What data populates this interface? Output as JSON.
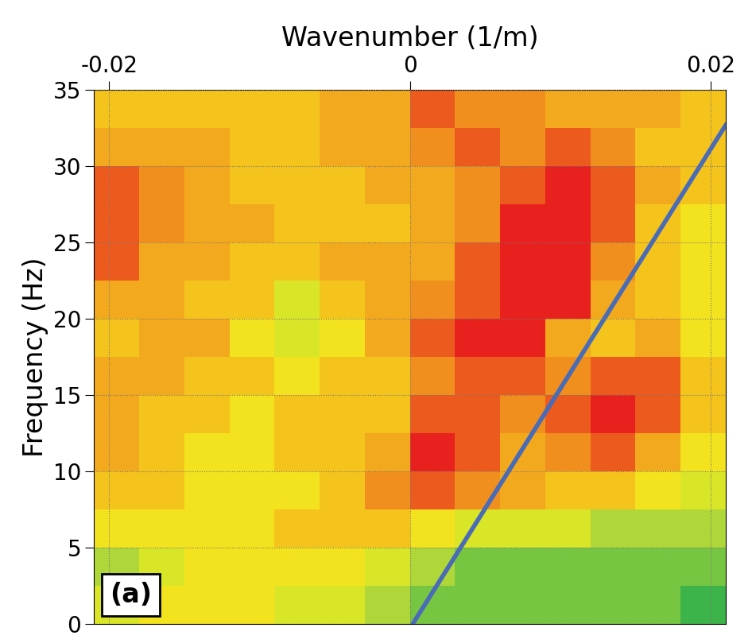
{
  "chart_data": {
    "type": "heatmap",
    "x_label": "Wavenumber (1/m)",
    "y_label": "Frequency (Hz)",
    "annotation": "(a)",
    "xlim": [
      -0.021,
      0.021
    ],
    "ylim": [
      0,
      35
    ],
    "xticks": [
      -0.02,
      0,
      0.02
    ],
    "yticks": [
      0,
      5,
      10,
      15,
      20,
      25,
      30,
      35
    ],
    "grid": true,
    "x": [
      -0.0195,
      -0.0165,
      -0.0135,
      -0.0105,
      -0.0075,
      -0.0045,
      -0.0015,
      0.0015,
      0.0045,
      0.0075,
      0.0105,
      0.0135,
      0.0165,
      0.0195
    ],
    "y": [
      1.25,
      3.75,
      6.25,
      8.75,
      11.25,
      13.75,
      16.25,
      18.75,
      21.25,
      23.75,
      26.25,
      28.75,
      31.25,
      33.75
    ],
    "cells": [
      [
        3,
        4,
        4,
        4,
        3,
        3,
        2,
        1,
        1,
        1,
        1,
        1,
        1,
        0
      ],
      [
        2,
        3,
        4,
        4,
        4,
        4,
        3,
        2,
        1,
        1,
        1,
        1,
        1,
        1
      ],
      [
        4,
        4,
        4,
        4,
        5,
        5,
        5,
        4,
        3,
        3,
        3,
        2,
        2,
        2
      ],
      [
        5,
        5,
        4,
        4,
        4,
        5,
        7,
        8,
        7,
        6,
        5,
        5,
        4,
        3
      ],
      [
        6,
        5,
        4,
        4,
        5,
        5,
        6,
        9,
        8,
        6,
        7,
        8,
        6,
        4
      ],
      [
        6,
        5,
        5,
        4,
        5,
        5,
        5,
        8,
        8,
        7,
        8,
        9,
        8,
        5
      ],
      [
        6,
        6,
        5,
        5,
        4,
        5,
        5,
        7,
        8,
        8,
        7,
        8,
        8,
        5
      ],
      [
        5,
        6,
        6,
        4,
        3,
        4,
        6,
        8,
        9,
        9,
        6,
        5,
        6,
        4
      ],
      [
        6,
        6,
        5,
        5,
        3,
        5,
        6,
        7,
        8,
        9,
        9,
        6,
        5,
        4
      ],
      [
        8,
        6,
        6,
        5,
        5,
        6,
        6,
        6,
        8,
        9,
        9,
        7,
        5,
        4
      ],
      [
        8,
        7,
        6,
        6,
        5,
        5,
        5,
        6,
        7,
        9,
        9,
        8,
        5,
        4
      ],
      [
        8,
        7,
        6,
        5,
        5,
        5,
        6,
        6,
        7,
        8,
        9,
        8,
        6,
        5
      ],
      [
        6,
        6,
        6,
        5,
        5,
        6,
        6,
        7,
        8,
        7,
        8,
        7,
        5,
        5
      ],
      [
        5,
        5,
        5,
        5,
        5,
        6,
        6,
        8,
        7,
        7,
        6,
        6,
        6,
        5
      ]
    ],
    "series": [
      {
        "type": "line",
        "color": "#4a6bb5",
        "line_style": "solid",
        "x": [
          0.0002,
          0.021
        ],
        "values": [
          0,
          32.7
        ]
      }
    ]
  }
}
